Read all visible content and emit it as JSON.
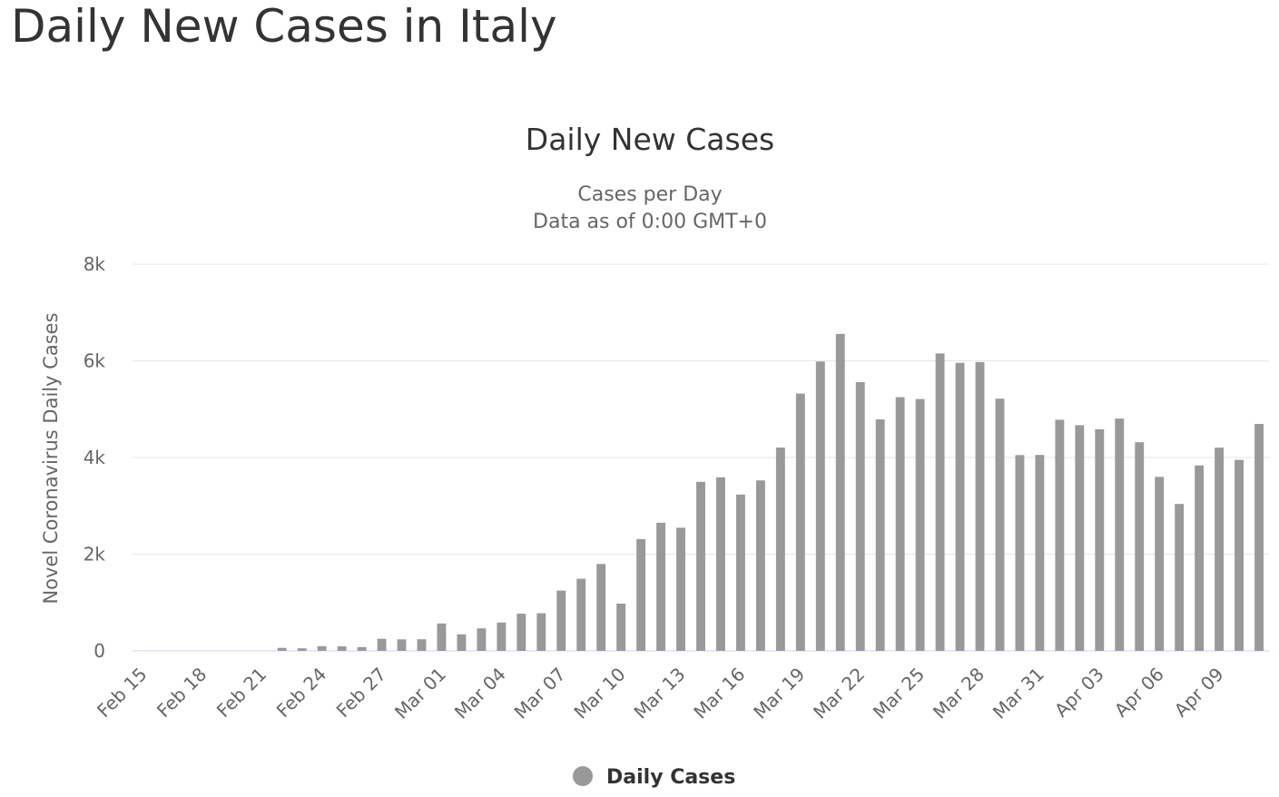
{
  "page": {
    "title": "Daily New Cases in Italy"
  },
  "chart_data": {
    "type": "bar",
    "title": "Daily New Cases",
    "subtitle_lines": [
      "Cases per Day",
      "Data as of 0:00 GMT+0"
    ],
    "xlabel": "",
    "ylabel": "Novel Coronavirus Daily Cases",
    "ylim": [
      0,
      8000
    ],
    "yticks": [
      0,
      2000,
      4000,
      6000,
      8000
    ],
    "ytick_labels": [
      "0",
      "2k",
      "4k",
      "6k",
      "8k"
    ],
    "grid": true,
    "legend_position": "bottom-center",
    "bar_color": "#999999",
    "categories": [
      "Feb 15",
      "Feb 16",
      "Feb 17",
      "Feb 18",
      "Feb 19",
      "Feb 20",
      "Feb 21",
      "Feb 22",
      "Feb 23",
      "Feb 24",
      "Feb 25",
      "Feb 26",
      "Feb 27",
      "Feb 28",
      "Feb 29",
      "Mar 01",
      "Mar 02",
      "Mar 03",
      "Mar 04",
      "Mar 05",
      "Mar 06",
      "Mar 07",
      "Mar 08",
      "Mar 09",
      "Mar 10",
      "Mar 11",
      "Mar 12",
      "Mar 13",
      "Mar 14",
      "Mar 15",
      "Mar 16",
      "Mar 17",
      "Mar 18",
      "Mar 19",
      "Mar 20",
      "Mar 21",
      "Mar 22",
      "Mar 23",
      "Mar 24",
      "Mar 25",
      "Mar 26",
      "Mar 27",
      "Mar 28",
      "Mar 29",
      "Mar 30",
      "Mar 31",
      "Apr 01",
      "Apr 02",
      "Apr 03",
      "Apr 04",
      "Apr 05",
      "Apr 06",
      "Apr 07",
      "Apr 08",
      "Apr 09",
      "Apr 10",
      "Apr 11"
    ],
    "tick_labels_shown": [
      "Feb 15",
      "Feb 18",
      "Feb 21",
      "Feb 24",
      "Feb 27",
      "Mar 01",
      "Mar 04",
      "Mar 07",
      "Mar 10",
      "Mar 13",
      "Mar 16",
      "Mar 19",
      "Mar 22",
      "Mar 25",
      "Mar 28",
      "Mar 31",
      "Apr 03",
      "Apr 06",
      "Apr 09"
    ],
    "series": [
      {
        "name": "Daily Cases",
        "values": [
          0,
          0,
          0,
          0,
          0,
          0,
          0,
          62,
          53,
          97,
          93,
          78,
          250,
          238,
          240,
          566,
          342,
          466,
          587,
          769,
          778,
          1247,
          1492,
          1797,
          977,
          2313,
          2651,
          2547,
          3497,
          3590,
          3233,
          3526,
          4207,
          5322,
          5986,
          6557,
          5560,
          4789,
          5249,
          5210,
          6153,
          5959,
          5974,
          5217,
          4050,
          4053,
          4782,
          4668,
          4585,
          4805,
          4316,
          3599,
          3039,
          3836,
          4204,
          3951,
          4694
        ]
      }
    ]
  }
}
